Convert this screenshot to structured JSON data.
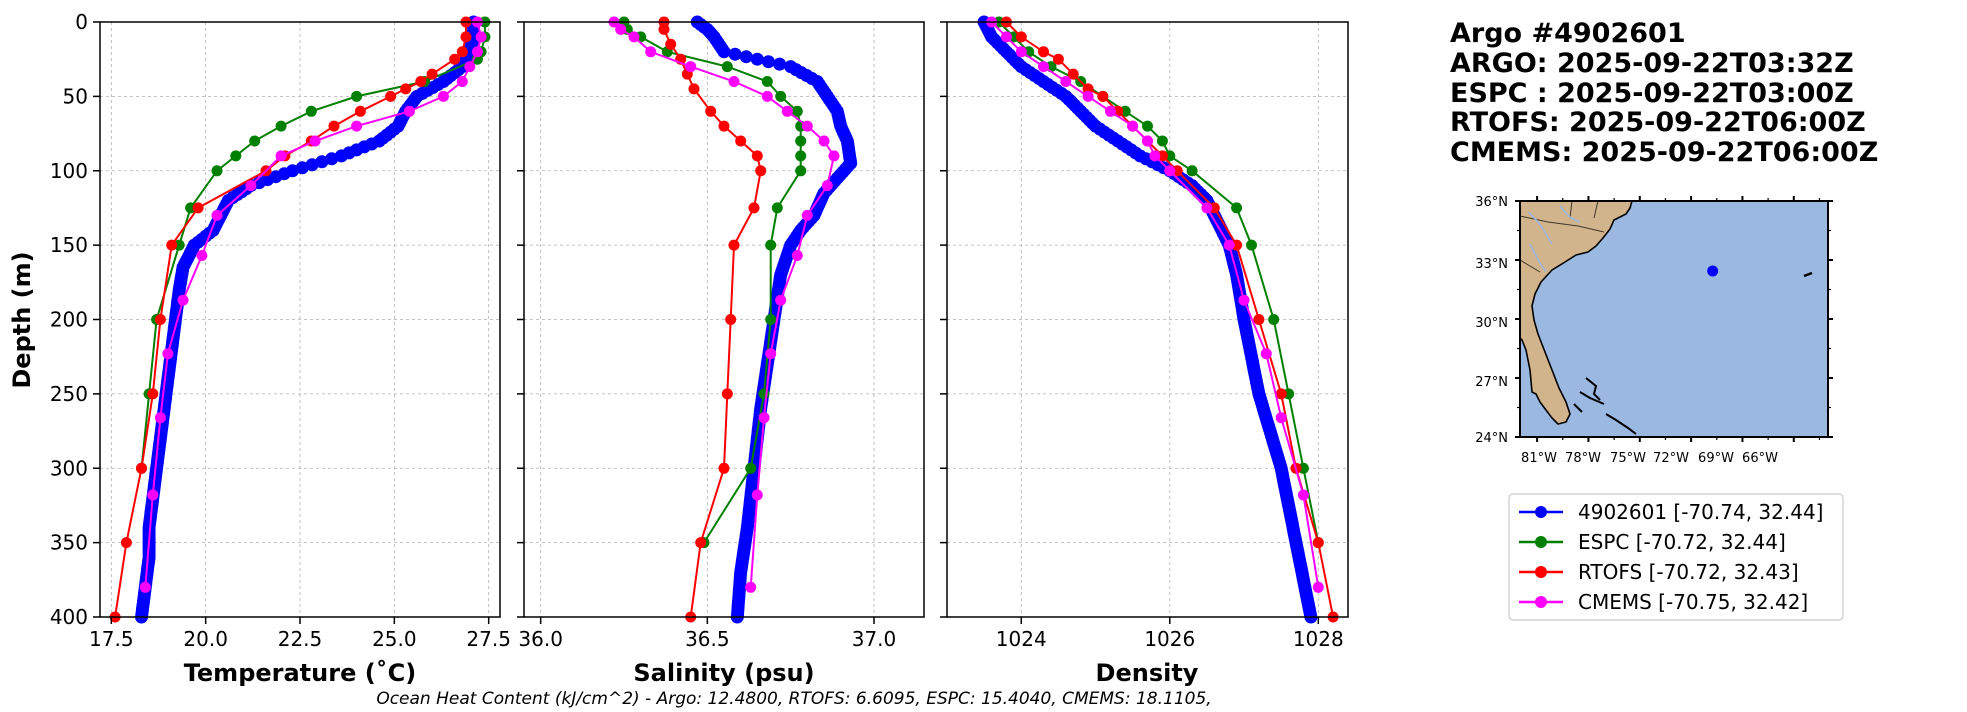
{
  "titles": {
    "line1": "Argo #4902601",
    "line2": "ARGO: 2025-09-22T03:32Z",
    "line3": "ESPC : 2025-09-22T03:00Z",
    "line4": "RTOFS: 2025-09-22T06:00Z",
    "line5": "CMEMS: 2025-09-22T06:00Z"
  },
  "footer": "Ocean Heat Content (kJ/cm^2) - Argo: 12.4800,  RTOFS: 6.6095,  ESPC: 15.4040,  CMEMS: 18.1105,",
  "colors": {
    "argo": "#0000ff",
    "espc": "#008000",
    "rtofs": "#ff0000",
    "cmems": "#ff00ff"
  },
  "legend": [
    {
      "key": "argo",
      "label": "4902601 [-70.74, 32.44]"
    },
    {
      "key": "espc",
      "label": "ESPC [-70.72, 32.44]"
    },
    {
      "key": "rtofs",
      "label": "RTOFS [-70.72, 32.43]"
    },
    {
      "key": "cmems",
      "label": "CMEMS [-70.75, 32.42]"
    }
  ],
  "inset_map": {
    "lat_labels": [
      "36°N",
      "33°N",
      "30°N",
      "27°N",
      "24°N"
    ],
    "lon_labels": [
      "81°W",
      "78°W",
      "75°W",
      "72°W",
      "69°W",
      "66°W"
    ],
    "extent": {
      "lon": [
        -82,
        -64
      ],
      "lat": [
        24,
        36
      ]
    },
    "float_position": {
      "lon": -70.74,
      "lat": 32.44
    },
    "land_color": "#d2b48c",
    "ocean_color": "#9bb8e1"
  },
  "chart_data": [
    {
      "type": "line",
      "panel": "temperature",
      "xlabel": "Temperature (˚C)",
      "ylabel": "Depth (m)",
      "xlim": [
        17.2,
        27.8
      ],
      "ylim": [
        400,
        0
      ],
      "xticks": [
        17.5,
        20.0,
        22.5,
        25.0,
        27.5
      ],
      "xtick_labels": [
        "17.5",
        "20.0",
        "22.5",
        "25.0",
        "27.5"
      ],
      "yticks": [
        0,
        50,
        100,
        150,
        200,
        250,
        300,
        350,
        400
      ],
      "ytick_labels": [
        "0",
        "50",
        "100",
        "150",
        "200",
        "250",
        "300",
        "350",
        "400"
      ],
      "grid": true,
      "series": [
        {
          "name": "argo",
          "style": "dense",
          "points": [
            [
              27.1,
              0
            ],
            [
              27.1,
              10
            ],
            [
              27.0,
              20
            ],
            [
              26.8,
              30
            ],
            [
              26.3,
              40
            ],
            [
              25.6,
              50
            ],
            [
              25.3,
              60
            ],
            [
              25.1,
              70
            ],
            [
              24.6,
              80
            ],
            [
              23.6,
              90
            ],
            [
              22.3,
              100
            ],
            [
              21.2,
              110
            ],
            [
              20.6,
              120
            ],
            [
              20.4,
              130
            ],
            [
              20.2,
              140
            ],
            [
              19.7,
              150
            ],
            [
              19.4,
              165
            ],
            [
              19.3,
              180
            ],
            [
              19.2,
              200
            ],
            [
              19.1,
              220
            ],
            [
              19.0,
              240
            ],
            [
              18.9,
              260
            ],
            [
              18.8,
              280
            ],
            [
              18.7,
              300
            ],
            [
              18.6,
              320
            ],
            [
              18.5,
              340
            ],
            [
              18.5,
              360
            ],
            [
              18.4,
              380
            ],
            [
              18.3,
              400
            ]
          ]
        },
        {
          "name": "espc",
          "points": [
            [
              27.4,
              0
            ],
            [
              27.4,
              10
            ],
            [
              27.3,
              20
            ],
            [
              27.2,
              25
            ],
            [
              25.8,
              40
            ],
            [
              24.0,
              50
            ],
            [
              22.8,
              60
            ],
            [
              22.0,
              70
            ],
            [
              21.3,
              80
            ],
            [
              20.8,
              90
            ],
            [
              20.3,
              100
            ],
            [
              19.6,
              125
            ],
            [
              19.3,
              150
            ],
            [
              18.7,
              200
            ],
            [
              18.5,
              250
            ],
            [
              18.3,
              300
            ]
          ]
        },
        {
          "name": "rtofs",
          "points": [
            [
              26.9,
              0
            ],
            [
              26.9,
              10
            ],
            [
              26.8,
              20
            ],
            [
              26.6,
              25
            ],
            [
              26.0,
              35
            ],
            [
              25.7,
              40
            ],
            [
              25.3,
              45
            ],
            [
              24.9,
              50
            ],
            [
              24.1,
              60
            ],
            [
              23.4,
              70
            ],
            [
              22.8,
              80
            ],
            [
              22.1,
              90
            ],
            [
              21.6,
              100
            ],
            [
              19.8,
              125
            ],
            [
              19.1,
              150
            ],
            [
              18.8,
              200
            ],
            [
              18.6,
              250
            ],
            [
              18.3,
              300
            ],
            [
              17.9,
              350
            ],
            [
              17.6,
              400
            ]
          ]
        },
        {
          "name": "cmems",
          "points": [
            [
              27.2,
              0
            ],
            [
              27.3,
              10
            ],
            [
              27.2,
              20
            ],
            [
              27.0,
              30
            ],
            [
              26.8,
              40
            ],
            [
              26.3,
              50
            ],
            [
              25.4,
              60
            ],
            [
              24.0,
              70
            ],
            [
              22.9,
              80
            ],
            [
              22.0,
              90
            ],
            [
              21.2,
              110
            ],
            [
              20.3,
              130
            ],
            [
              19.9,
              157
            ],
            [
              19.4,
              187
            ],
            [
              19.0,
              223
            ],
            [
              18.8,
              266
            ],
            [
              18.6,
              318
            ],
            [
              18.4,
              380
            ]
          ]
        }
      ]
    },
    {
      "type": "line",
      "panel": "salinity",
      "xlabel": "Salinity (psu)",
      "xlim": [
        35.95,
        37.15
      ],
      "ylim": [
        400,
        0
      ],
      "xticks": [
        36.0,
        36.5,
        37.0
      ],
      "xtick_labels": [
        "36.0",
        "36.5",
        "37.0"
      ],
      "grid": true,
      "series": [
        {
          "name": "argo",
          "style": "dense",
          "points": [
            [
              36.47,
              0
            ],
            [
              36.5,
              5
            ],
            [
              36.52,
              10
            ],
            [
              36.55,
              20
            ],
            [
              36.65,
              25
            ],
            [
              36.75,
              30
            ],
            [
              36.83,
              40
            ],
            [
              36.86,
              50
            ],
            [
              36.89,
              60
            ],
            [
              36.9,
              70
            ],
            [
              36.92,
              80
            ],
            [
              36.93,
              95
            ],
            [
              36.89,
              105
            ],
            [
              36.85,
              115
            ],
            [
              36.82,
              130
            ],
            [
              36.78,
              140
            ],
            [
              36.75,
              150
            ],
            [
              36.72,
              170
            ],
            [
              36.7,
              200
            ],
            [
              36.68,
              230
            ],
            [
              36.66,
              260
            ],
            [
              36.64,
              300
            ],
            [
              36.62,
              340
            ],
            [
              36.6,
              370
            ],
            [
              36.59,
              400
            ]
          ]
        },
        {
          "name": "espc",
          "points": [
            [
              36.25,
              0
            ],
            [
              36.26,
              5
            ],
            [
              36.3,
              10
            ],
            [
              36.38,
              20
            ],
            [
              36.56,
              30
            ],
            [
              36.68,
              40
            ],
            [
              36.72,
              50
            ],
            [
              36.77,
              60
            ],
            [
              36.78,
              70
            ],
            [
              36.78,
              80
            ],
            [
              36.78,
              90
            ],
            [
              36.78,
              100
            ],
            [
              36.71,
              125
            ],
            [
              36.69,
              150
            ],
            [
              36.69,
              200
            ],
            [
              36.67,
              250
            ],
            [
              36.63,
              300
            ],
            [
              36.49,
              350
            ]
          ]
        },
        {
          "name": "rtofs",
          "points": [
            [
              36.37,
              0
            ],
            [
              36.37,
              5
            ],
            [
              36.39,
              15
            ],
            [
              36.42,
              25
            ],
            [
              36.44,
              35
            ],
            [
              36.46,
              45
            ],
            [
              36.51,
              60
            ],
            [
              36.55,
              70
            ],
            [
              36.6,
              80
            ],
            [
              36.65,
              90
            ],
            [
              36.66,
              100
            ],
            [
              36.64,
              125
            ],
            [
              36.58,
              150
            ],
            [
              36.57,
              200
            ],
            [
              36.56,
              250
            ],
            [
              36.55,
              300
            ],
            [
              36.48,
              350
            ],
            [
              36.45,
              400
            ]
          ]
        },
        {
          "name": "cmems",
          "points": [
            [
              36.22,
              0
            ],
            [
              36.24,
              5
            ],
            [
              36.28,
              10
            ],
            [
              36.33,
              20
            ],
            [
              36.45,
              30
            ],
            [
              36.58,
              40
            ],
            [
              36.68,
              50
            ],
            [
              36.74,
              60
            ],
            [
              36.8,
              70
            ],
            [
              36.85,
              80
            ],
            [
              36.88,
              90
            ],
            [
              36.86,
              110
            ],
            [
              36.8,
              130
            ],
            [
              36.77,
              157
            ],
            [
              36.72,
              187
            ],
            [
              36.69,
              223
            ],
            [
              36.67,
              266
            ],
            [
              36.65,
              318
            ],
            [
              36.63,
              380
            ]
          ]
        }
      ]
    },
    {
      "type": "line",
      "panel": "density",
      "xlabel": "Density",
      "xlim": [
        1023.0,
        1028.4
      ],
      "ylim": [
        400,
        0
      ],
      "xticks": [
        1024,
        1026,
        1028
      ],
      "xtick_labels": [
        "1024",
        "1026",
        "1028"
      ],
      "grid": true,
      "series": [
        {
          "name": "argo",
          "style": "dense",
          "points": [
            [
              1023.5,
              0
            ],
            [
              1023.6,
              10
            ],
            [
              1023.8,
              20
            ],
            [
              1024.0,
              30
            ],
            [
              1024.3,
              40
            ],
            [
              1024.6,
              50
            ],
            [
              1024.8,
              60
            ],
            [
              1025.0,
              70
            ],
            [
              1025.3,
              80
            ],
            [
              1025.6,
              90
            ],
            [
              1026.0,
              100
            ],
            [
              1026.3,
              110
            ],
            [
              1026.5,
              120
            ],
            [
              1026.6,
              130
            ],
            [
              1026.7,
              140
            ],
            [
              1026.8,
              150
            ],
            [
              1026.9,
              170
            ],
            [
              1027.0,
              200
            ],
            [
              1027.2,
              250
            ],
            [
              1027.5,
              300
            ],
            [
              1027.7,
              350
            ],
            [
              1027.9,
              400
            ]
          ]
        },
        {
          "name": "espc",
          "points": [
            [
              1023.7,
              0
            ],
            [
              1023.9,
              10
            ],
            [
              1024.1,
              20
            ],
            [
              1024.4,
              30
            ],
            [
              1024.8,
              40
            ],
            [
              1025.1,
              50
            ],
            [
              1025.4,
              60
            ],
            [
              1025.7,
              70
            ],
            [
              1025.9,
              80
            ],
            [
              1026.0,
              90
            ],
            [
              1026.3,
              100
            ],
            [
              1026.9,
              125
            ],
            [
              1027.1,
              150
            ],
            [
              1027.4,
              200
            ],
            [
              1027.6,
              250
            ],
            [
              1027.8,
              300
            ],
            [
              1028.0,
              350
            ]
          ]
        },
        {
          "name": "rtofs",
          "points": [
            [
              1023.8,
              0
            ],
            [
              1024.0,
              10
            ],
            [
              1024.3,
              20
            ],
            [
              1024.5,
              25
            ],
            [
              1024.7,
              35
            ],
            [
              1024.9,
              45
            ],
            [
              1025.1,
              50
            ],
            [
              1025.3,
              60
            ],
            [
              1025.5,
              70
            ],
            [
              1025.7,
              80
            ],
            [
              1025.9,
              90
            ],
            [
              1026.1,
              100
            ],
            [
              1026.6,
              125
            ],
            [
              1026.9,
              150
            ],
            [
              1027.2,
              200
            ],
            [
              1027.5,
              250
            ],
            [
              1027.7,
              300
            ],
            [
              1028.0,
              350
            ],
            [
              1028.2,
              400
            ]
          ]
        },
        {
          "name": "cmems",
          "points": [
            [
              1023.6,
              0
            ],
            [
              1023.8,
              10
            ],
            [
              1024.0,
              20
            ],
            [
              1024.3,
              30
            ],
            [
              1024.6,
              40
            ],
            [
              1024.9,
              50
            ],
            [
              1025.2,
              60
            ],
            [
              1025.5,
              70
            ],
            [
              1025.7,
              80
            ],
            [
              1025.8,
              90
            ],
            [
              1026.0,
              100
            ],
            [
              1026.5,
              125
            ],
            [
              1026.8,
              150
            ],
            [
              1027.0,
              187
            ],
            [
              1027.3,
              223
            ],
            [
              1027.5,
              266
            ],
            [
              1027.8,
              318
            ],
            [
              1028.0,
              380
            ]
          ]
        }
      ]
    }
  ]
}
